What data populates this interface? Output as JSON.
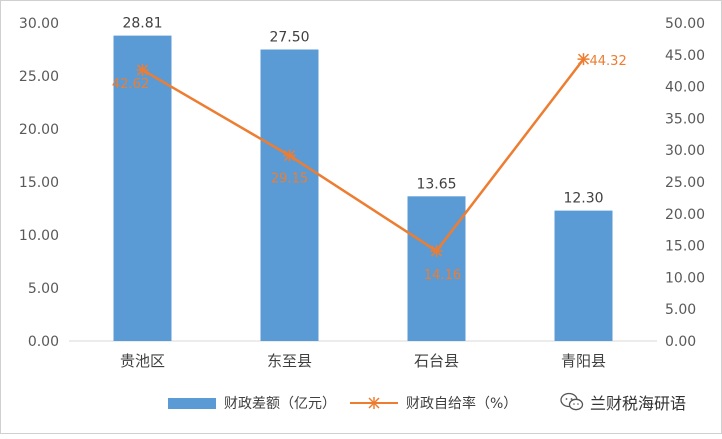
{
  "chart_data": {
    "type": "bar+line",
    "categories": [
      "贵池区",
      "东至县",
      "石台县",
      "青阳县"
    ],
    "series": [
      {
        "name": "财政差额（亿元）",
        "type": "bar",
        "axis": "left",
        "values": [
          28.81,
          27.5,
          13.65,
          12.3
        ],
        "labels": [
          "28.81",
          "27.50",
          "13.65",
          "12.30"
        ],
        "color": "#5b9bd5"
      },
      {
        "name": "财政自给率（%）",
        "type": "line",
        "axis": "right",
        "values": [
          42.62,
          29.15,
          14.16,
          44.32
        ],
        "labels": [
          "42.62",
          "29.15",
          "14.16",
          "44.32"
        ],
        "color": "#ed7d31",
        "marker": "asterisk"
      }
    ],
    "y_left": {
      "ylim": [
        0,
        30
      ],
      "ticks": [
        "0.00",
        "5.00",
        "10.00",
        "15.00",
        "20.00",
        "25.00",
        "30.00"
      ]
    },
    "y_right": {
      "ylim": [
        0,
        50
      ],
      "ticks": [
        "0.00",
        "5.00",
        "10.00",
        "15.00",
        "20.00",
        "25.00",
        "30.00",
        "35.00",
        "40.00",
        "45.00",
        "50.00"
      ]
    },
    "grid": false,
    "legend_position": "bottom"
  },
  "watermark": {
    "text": "兰财税海研语",
    "icon": "wechat-icon"
  }
}
